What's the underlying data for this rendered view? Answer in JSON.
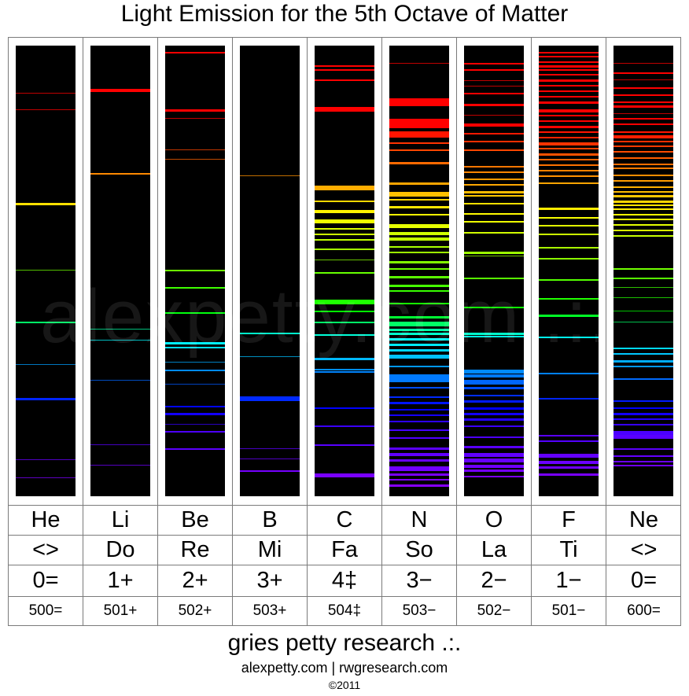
{
  "title": "Light Emission for the 5th Octave of Matter",
  "watermark": "alexpetty.com .:.",
  "footer": {
    "org": "gries petty research .:.",
    "links": "alexpetty.com | rwgresearch.com",
    "copyright": "©2011"
  },
  "elements": [
    {
      "symbol": "He",
      "note": "<>",
      "valence": "0=",
      "series": "500="
    },
    {
      "symbol": "Li",
      "note": "Do",
      "valence": "1+",
      "series": "501+"
    },
    {
      "symbol": "Be",
      "note": "Re",
      "valence": "2+",
      "series": "502+"
    },
    {
      "symbol": "B",
      "note": "Mi",
      "valence": "3+",
      "series": "503+"
    },
    {
      "symbol": "C",
      "note": "Fa",
      "valence": "4‡",
      "series": "504‡"
    },
    {
      "symbol": "N",
      "note": "So",
      "valence": "3−",
      "series": "503−"
    },
    {
      "symbol": "O",
      "note": "La",
      "valence": "2−",
      "series": "502−"
    },
    {
      "symbol": "F",
      "note": "Ti",
      "valence": "1−",
      "series": "501−"
    },
    {
      "symbol": "Ne",
      "note": "<>",
      "valence": "0=",
      "series": "600="
    }
  ],
  "chart_data": {
    "type": "spectral-lines",
    "title": "Light Emission for the 5th Octave of Matter",
    "wavelength_range_nm": [
      380,
      700
    ],
    "orientation": "red at top, violet at bottom",
    "spectra": [
      {
        "element": "He",
        "lines": [
          {
            "nm": 668,
            "w": 1
          },
          {
            "nm": 656,
            "w": 1
          },
          {
            "nm": 588,
            "w": 3
          },
          {
            "nm": 540,
            "w": 1
          },
          {
            "nm": 502,
            "w": 2
          },
          {
            "nm": 471,
            "w": 1
          },
          {
            "nm": 447,
            "w": 3
          },
          {
            "nm": 402,
            "w": 1
          },
          {
            "nm": 389,
            "w": 1
          }
        ]
      },
      {
        "element": "Li",
        "lines": [
          {
            "nm": 671,
            "w": 4
          },
          {
            "nm": 610,
            "w": 2
          },
          {
            "nm": 497,
            "w": 1
          },
          {
            "nm": 489,
            "w": 1
          },
          {
            "nm": 460,
            "w": 1
          },
          {
            "nm": 413,
            "w": 1
          },
          {
            "nm": 398,
            "w": 1
          }
        ]
      },
      {
        "element": "Be",
        "lines": [
          {
            "nm": 698,
            "w": 2
          },
          {
            "nm": 656,
            "w": 3
          },
          {
            "nm": 650,
            "w": 1
          },
          {
            "nm": 627,
            "w": 1
          },
          {
            "nm": 620,
            "w": 1
          },
          {
            "nm": 540,
            "w": 2
          },
          {
            "nm": 527,
            "w": 2
          },
          {
            "nm": 509,
            "w": 2
          },
          {
            "nm": 487,
            "w": 3
          },
          {
            "nm": 484,
            "w": 2
          },
          {
            "nm": 473,
            "w": 1
          },
          {
            "nm": 467,
            "w": 2
          },
          {
            "nm": 457,
            "w": 1
          },
          {
            "nm": 441,
            "w": 2
          },
          {
            "nm": 436,
            "w": 3
          },
          {
            "nm": 428,
            "w": 1
          },
          {
            "nm": 423,
            "w": 2
          },
          {
            "nm": 410,
            "w": 2
          }
        ]
      },
      {
        "element": "B",
        "lines": [
          {
            "nm": 608,
            "w": 1
          },
          {
            "nm": 494,
            "w": 2
          },
          {
            "nm": 477,
            "w": 1
          },
          {
            "nm": 448,
            "w": 6
          },
          {
            "nm": 410,
            "w": 1
          },
          {
            "nm": 403,
            "w": 1
          },
          {
            "nm": 394,
            "w": 2
          }
        ]
      },
      {
        "element": "C",
        "lines": [
          {
            "nm": 688,
            "w": 2
          },
          {
            "nm": 685,
            "w": 2
          },
          {
            "nm": 678,
            "w": 2
          },
          {
            "nm": 658,
            "w": 6
          },
          {
            "nm": 601,
            "w": 6
          },
          {
            "nm": 590,
            "w": 2
          },
          {
            "nm": 583,
            "w": 4
          },
          {
            "nm": 576,
            "w": 5
          },
          {
            "nm": 570,
            "w": 2
          },
          {
            "nm": 566,
            "w": 2
          },
          {
            "nm": 562,
            "w": 2
          },
          {
            "nm": 555,
            "w": 2
          },
          {
            "nm": 547,
            "w": 1
          },
          {
            "nm": 538,
            "w": 2
          },
          {
            "nm": 518,
            "w": 6
          },
          {
            "nm": 510,
            "w": 2
          },
          {
            "nm": 502,
            "w": 2
          },
          {
            "nm": 493,
            "w": 2
          },
          {
            "nm": 476,
            "w": 3
          },
          {
            "nm": 468,
            "w": 2
          },
          {
            "nm": 466,
            "w": 2
          },
          {
            "nm": 440,
            "w": 2
          },
          {
            "nm": 427,
            "w": 2
          },
          {
            "nm": 413,
            "w": 2
          },
          {
            "nm": 392,
            "w": 5
          }
        ]
      },
      {
        "element": "N",
        "lines": [
          {
            "nm": 690,
            "w": 1
          },
          {
            "nm": 664,
            "w": 10
          },
          {
            "nm": 649,
            "w": 12
          },
          {
            "nm": 640,
            "w": 8
          },
          {
            "nm": 632,
            "w": 2
          },
          {
            "nm": 627,
            "w": 2
          },
          {
            "nm": 618,
            "w": 3
          },
          {
            "nm": 603,
            "w": 3
          },
          {
            "nm": 596,
            "w": 6
          },
          {
            "nm": 591,
            "w": 2
          },
          {
            "nm": 586,
            "w": 3
          },
          {
            "nm": 580,
            "w": 2
          },
          {
            "nm": 573,
            "w": 5
          },
          {
            "nm": 567,
            "w": 4
          },
          {
            "nm": 563,
            "w": 4
          },
          {
            "nm": 557,
            "w": 2
          },
          {
            "nm": 553,
            "w": 2
          },
          {
            "nm": 546,
            "w": 3
          },
          {
            "nm": 541,
            "w": 2
          },
          {
            "nm": 535,
            "w": 3
          },
          {
            "nm": 529,
            "w": 3
          },
          {
            "nm": 525,
            "w": 2
          },
          {
            "nm": 516,
            "w": 2
          },
          {
            "nm": 506,
            "w": 3
          },
          {
            "nm": 502,
            "w": 6
          },
          {
            "nm": 497,
            "w": 3
          },
          {
            "nm": 494,
            "w": 3
          },
          {
            "nm": 490,
            "w": 3
          },
          {
            "nm": 486,
            "w": 3
          },
          {
            "nm": 482,
            "w": 3
          },
          {
            "nm": 478,
            "w": 5
          },
          {
            "nm": 470,
            "w": 2
          },
          {
            "nm": 464,
            "w": 10
          },
          {
            "nm": 455,
            "w": 2
          },
          {
            "nm": 448,
            "w": 2
          },
          {
            "nm": 444,
            "w": 3
          },
          {
            "nm": 439,
            "w": 2
          },
          {
            "nm": 435,
            "w": 2
          },
          {
            "nm": 430,
            "w": 2
          },
          {
            "nm": 424,
            "w": 2
          },
          {
            "nm": 418,
            "w": 2
          },
          {
            "nm": 411,
            "w": 3
          },
          {
            "nm": 407,
            "w": 4
          },
          {
            "nm": 402,
            "w": 3
          },
          {
            "nm": 397,
            "w": 6
          },
          {
            "nm": 392,
            "w": 3
          },
          {
            "nm": 388,
            "w": 2
          },
          {
            "nm": 384,
            "w": 3
          }
        ]
      },
      {
        "element": "O",
        "lines": [
          {
            "nm": 690,
            "w": 2
          },
          {
            "nm": 685,
            "w": 2
          },
          {
            "nm": 677,
            "w": 1
          },
          {
            "nm": 673,
            "w": 1
          },
          {
            "nm": 668,
            "w": 2
          },
          {
            "nm": 660,
            "w": 3
          },
          {
            "nm": 652,
            "w": 1
          },
          {
            "nm": 646,
            "w": 4
          },
          {
            "nm": 639,
            "w": 2
          },
          {
            "nm": 633,
            "w": 2
          },
          {
            "nm": 627,
            "w": 2
          },
          {
            "nm": 615,
            "w": 2
          },
          {
            "nm": 611,
            "w": 2
          },
          {
            "nm": 606,
            "w": 2
          },
          {
            "nm": 602,
            "w": 2
          },
          {
            "nm": 597,
            "w": 3
          },
          {
            "nm": 594,
            "w": 2
          },
          {
            "nm": 588,
            "w": 2
          },
          {
            "nm": 581,
            "w": 2
          },
          {
            "nm": 575,
            "w": 2
          },
          {
            "nm": 567,
            "w": 2
          },
          {
            "nm": 553,
            "w": 3
          },
          {
            "nm": 550,
            "w": 1
          },
          {
            "nm": 534,
            "w": 2
          },
          {
            "nm": 513,
            "w": 2
          },
          {
            "nm": 494,
            "w": 3
          },
          {
            "nm": 492,
            "w": 2
          },
          {
            "nm": 467,
            "w": 5
          },
          {
            "nm": 464,
            "w": 4
          },
          {
            "nm": 460,
            "w": 6
          },
          {
            "nm": 455,
            "w": 3
          },
          {
            "nm": 449,
            "w": 2
          },
          {
            "nm": 445,
            "w": 3
          },
          {
            "nm": 440,
            "w": 3
          },
          {
            "nm": 436,
            "w": 3
          },
          {
            "nm": 432,
            "w": 3
          },
          {
            "nm": 427,
            "w": 2
          },
          {
            "nm": 419,
            "w": 2
          },
          {
            "nm": 412,
            "w": 3
          },
          {
            "nm": 407,
            "w": 5
          },
          {
            "nm": 403,
            "w": 5
          },
          {
            "nm": 398,
            "w": 4
          },
          {
            "nm": 395,
            "w": 3
          },
          {
            "nm": 390,
            "w": 2
          }
        ]
      },
      {
        "element": "F",
        "lines": [
          {
            "nm": 698,
            "w": 2
          },
          {
            "nm": 695,
            "w": 2
          },
          {
            "nm": 691,
            "w": 2
          },
          {
            "nm": 688,
            "w": 3
          },
          {
            "nm": 685,
            "w": 2
          },
          {
            "nm": 682,
            "w": 2
          },
          {
            "nm": 678,
            "w": 3
          },
          {
            "nm": 674,
            "w": 2
          },
          {
            "nm": 670,
            "w": 2
          },
          {
            "nm": 666,
            "w": 2
          },
          {
            "nm": 662,
            "w": 3
          },
          {
            "nm": 656,
            "w": 4
          },
          {
            "nm": 652,
            "w": 2
          },
          {
            "nm": 648,
            "w": 2
          },
          {
            "nm": 644,
            "w": 3
          },
          {
            "nm": 640,
            "w": 2
          },
          {
            "nm": 636,
            "w": 2
          },
          {
            "nm": 632,
            "w": 4
          },
          {
            "nm": 628,
            "w": 2
          },
          {
            "nm": 624,
            "w": 3
          },
          {
            "nm": 620,
            "w": 2
          },
          {
            "nm": 616,
            "w": 2
          },
          {
            "nm": 612,
            "w": 2
          },
          {
            "nm": 608,
            "w": 2
          },
          {
            "nm": 603,
            "w": 2
          },
          {
            "nm": 585,
            "w": 3
          },
          {
            "nm": 578,
            "w": 2
          },
          {
            "nm": 572,
            "w": 2
          },
          {
            "nm": 566,
            "w": 2
          },
          {
            "nm": 556,
            "w": 2
          },
          {
            "nm": 548,
            "w": 2
          },
          {
            "nm": 533,
            "w": 2
          },
          {
            "nm": 519,
            "w": 2
          },
          {
            "nm": 507,
            "w": 3
          },
          {
            "nm": 491,
            "w": 2
          },
          {
            "nm": 465,
            "w": 2
          },
          {
            "nm": 447,
            "w": 2
          },
          {
            "nm": 420,
            "w": 2
          },
          {
            "nm": 416,
            "w": 2
          },
          {
            "nm": 406,
            "w": 5
          },
          {
            "nm": 401,
            "w": 4
          },
          {
            "nm": 397,
            "w": 3
          },
          {
            "nm": 392,
            "w": 3
          }
        ]
      },
      {
        "element": "Ne",
        "lines": [
          {
            "nm": 690,
            "w": 1
          },
          {
            "nm": 683,
            "w": 2
          },
          {
            "nm": 678,
            "w": 1
          },
          {
            "nm": 672,
            "w": 2
          },
          {
            "nm": 667,
            "w": 2
          },
          {
            "nm": 662,
            "w": 2
          },
          {
            "nm": 659,
            "w": 3
          },
          {
            "nm": 653,
            "w": 1
          },
          {
            "nm": 650,
            "w": 2
          },
          {
            "nm": 646,
            "w": 2
          },
          {
            "nm": 640,
            "w": 2
          },
          {
            "nm": 637,
            "w": 4
          },
          {
            "nm": 633,
            "w": 2
          },
          {
            "nm": 630,
            "w": 2
          },
          {
            "nm": 626,
            "w": 2
          },
          {
            "nm": 621,
            "w": 2
          },
          {
            "nm": 617,
            "w": 2
          },
          {
            "nm": 614,
            "w": 2
          },
          {
            "nm": 609,
            "w": 2
          },
          {
            "nm": 605,
            "w": 2
          },
          {
            "nm": 600,
            "w": 2
          },
          {
            "nm": 597,
            "w": 2
          },
          {
            "nm": 594,
            "w": 3
          },
          {
            "nm": 590,
            "w": 3
          },
          {
            "nm": 587,
            "w": 2
          },
          {
            "nm": 584,
            "w": 2
          },
          {
            "nm": 580,
            "w": 2
          },
          {
            "nm": 577,
            "w": 2
          },
          {
            "nm": 573,
            "w": 2
          },
          {
            "nm": 569,
            "w": 2
          },
          {
            "nm": 565,
            "w": 2
          },
          {
            "nm": 541,
            "w": 2
          },
          {
            "nm": 534,
            "w": 2
          },
          {
            "nm": 527,
            "w": 1
          },
          {
            "nm": 520,
            "w": 1
          },
          {
            "nm": 510,
            "w": 1
          },
          {
            "nm": 502,
            "w": 1
          },
          {
            "nm": 483,
            "w": 2
          },
          {
            "nm": 479,
            "w": 2
          },
          {
            "nm": 474,
            "w": 3
          },
          {
            "nm": 470,
            "w": 2
          },
          {
            "nm": 461,
            "w": 2
          },
          {
            "nm": 445,
            "w": 2
          },
          {
            "nm": 440,
            "w": 2
          },
          {
            "nm": 436,
            "w": 3
          },
          {
            "nm": 432,
            "w": 2
          },
          {
            "nm": 428,
            "w": 2
          },
          {
            "nm": 423,
            "w": 6
          },
          {
            "nm": 420,
            "w": 5
          },
          {
            "nm": 410,
            "w": 2
          },
          {
            "nm": 405,
            "w": 2
          },
          {
            "nm": 401,
            "w": 2
          },
          {
            "nm": 398,
            "w": 2
          }
        ]
      }
    ]
  }
}
